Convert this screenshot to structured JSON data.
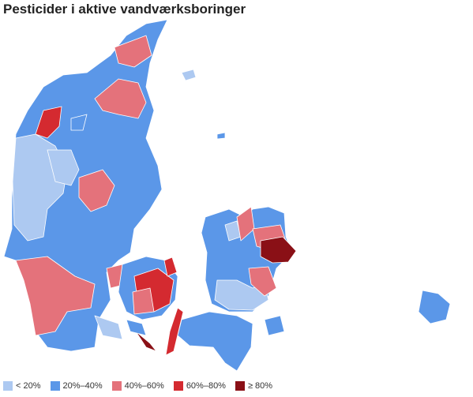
{
  "title": "Pesticider i aktive vandværksboringer",
  "legend": [
    {
      "label": "< 20%",
      "color": "#adc9f1"
    },
    {
      "label": "20%–40%",
      "color": "#5b97e8"
    },
    {
      "label": "40%–60%",
      "color": "#e4727b"
    },
    {
      "label": "60%–80%",
      "color": "#d42a30"
    },
    {
      "label": "≥ 80%",
      "color": "#8a1016"
    }
  ]
}
